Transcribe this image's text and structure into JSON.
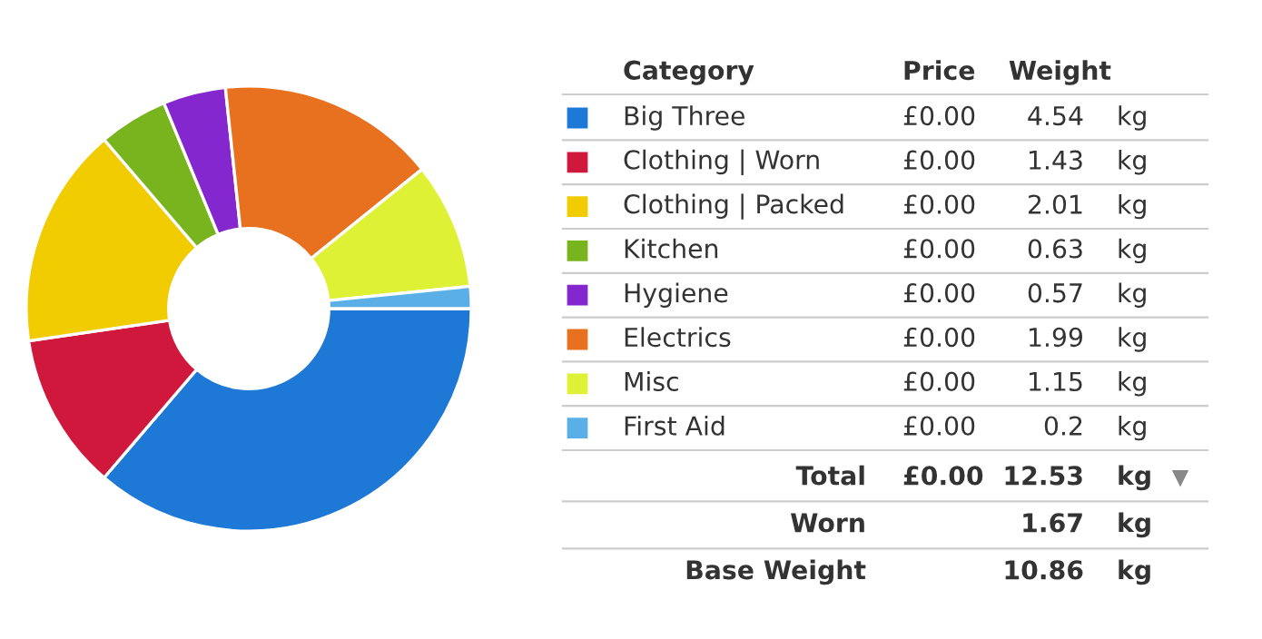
{
  "chart_data": {
    "type": "donut",
    "categories": [
      "Big Three",
      "Clothing | Worn",
      "Clothing | Packed",
      "Kitchen",
      "Hygiene",
      "Electrics",
      "Misc",
      "First Aid"
    ],
    "values": [
      4.54,
      1.43,
      2.01,
      0.63,
      0.57,
      1.99,
      1.15,
      0.2
    ],
    "colors": [
      "#1e78d6",
      "#d0173c",
      "#f1cc00",
      "#78b41d",
      "#8427cf",
      "#e8711f",
      "#dff134",
      "#5aafe6"
    ],
    "data_labels": true,
    "legend": "right",
    "annotations": [
      "Category",
      "Price",
      "Weight",
      "£0.00",
      "kg",
      "£0.00",
      "kg",
      "£0.00",
      "kg",
      "£0.00",
      "kg",
      "£0.00",
      "kg",
      "£0.00",
      "kg",
      "£0.00",
      "kg",
      "£0.00",
      "kg",
      "Total",
      "£0.00",
      "12.53",
      "kg",
      "Worn",
      "1.67",
      "kg",
      "Base Weight",
      "10.86",
      "kg"
    ]
  }
}
